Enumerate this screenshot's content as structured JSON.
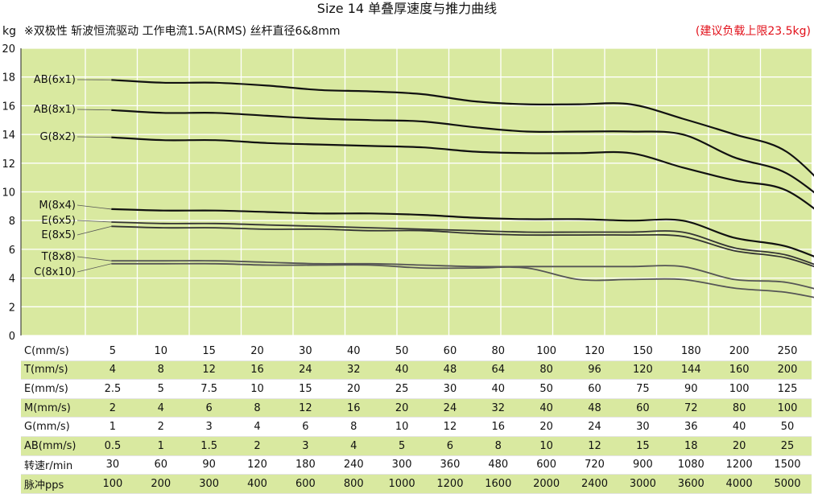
{
  "title": "Size 14 单叠厚速度与推力曲线",
  "unit": "kg",
  "subtitle": "※双极性 斩波恒流驱动 工作电流1.5A(RMS)  丝杆直径6&8mm",
  "load_note": "(建议负载上限23.5kg)",
  "colors": {
    "plot_bg": "#d9e9a0",
    "grid": "#ffffff",
    "accent": "#e2101a",
    "row_shade": "#d9e9a0"
  },
  "chart_data": {
    "type": "line",
    "ylabel": "kg",
    "ylim": [
      0,
      20
    ],
    "yticks": [
      0,
      2,
      4,
      6,
      8,
      10,
      12,
      14,
      16,
      18,
      20
    ],
    "grid": true,
    "x": [
      30,
      60,
      90,
      120,
      180,
      240,
      300,
      360,
      480,
      600,
      720,
      900,
      1080,
      1200,
      1500
    ],
    "series": [
      {
        "name": "AB(6x1)",
        "color": "#111111",
        "values": [
          17.8,
          17.6,
          17.6,
          17.4,
          17.1,
          17.0,
          16.8,
          16.3,
          16.1,
          16.1,
          16.1,
          15.1,
          14.0,
          12.8,
          9.4
        ]
      },
      {
        "name": "AB(8x1)",
        "color": "#111111",
        "values": [
          15.7,
          15.5,
          15.5,
          15.3,
          15.1,
          15.0,
          14.9,
          14.5,
          14.2,
          14.2,
          14.2,
          14.0,
          12.4,
          11.3,
          8.6
        ]
      },
      {
        "name": "G(8x2)",
        "color": "#111111",
        "values": [
          13.8,
          13.6,
          13.6,
          13.4,
          13.3,
          13.2,
          13.1,
          12.8,
          12.7,
          12.7,
          12.7,
          11.7,
          10.8,
          10.1,
          7.5
        ]
      },
      {
        "name": "M(8x4)",
        "color": "#111111",
        "values": [
          8.8,
          8.7,
          8.7,
          8.6,
          8.5,
          8.5,
          8.4,
          8.2,
          8.1,
          8.1,
          8.0,
          8.0,
          6.8,
          6.2,
          4.8
        ]
      },
      {
        "name": "E(6x5)",
        "color": "#333333",
        "values": [
          7.9,
          7.8,
          7.8,
          7.7,
          7.6,
          7.5,
          7.4,
          7.3,
          7.2,
          7.2,
          7.2,
          7.2,
          6.1,
          5.6,
          4.3
        ]
      },
      {
        "name": "E(8x5)",
        "color": "#333333",
        "values": [
          7.6,
          7.5,
          7.5,
          7.4,
          7.4,
          7.3,
          7.3,
          7.1,
          7.0,
          7.0,
          7.0,
          6.9,
          5.9,
          5.4,
          4.2
        ]
      },
      {
        "name": "T(8x8)",
        "color": "#555555",
        "values": [
          5.2,
          5.2,
          5.2,
          5.1,
          5.0,
          5.0,
          4.9,
          4.8,
          4.8,
          4.8,
          4.8,
          4.8,
          3.9,
          3.7,
          2.8
        ]
      },
      {
        "name": "C(8x10)",
        "color": "#555555",
        "values": [
          5.0,
          5.0,
          5.0,
          4.9,
          4.9,
          4.9,
          4.7,
          4.7,
          4.7,
          3.9,
          3.9,
          3.9,
          3.3,
          3.0,
          2.3
        ]
      }
    ]
  },
  "table": [
    {
      "label": "C(mm/s)",
      "values": [
        "5",
        "10",
        "15",
        "20",
        "30",
        "40",
        "50",
        "60",
        "80",
        "100",
        "120",
        "150",
        "180",
        "200",
        "250"
      ]
    },
    {
      "label": "T(mm/s)",
      "values": [
        "4",
        "8",
        "12",
        "16",
        "24",
        "32",
        "40",
        "48",
        "64",
        "80",
        "96",
        "120",
        "144",
        "160",
        "200"
      ]
    },
    {
      "label": "E(mm/s)",
      "values": [
        "2.5",
        "5",
        "7.5",
        "10",
        "15",
        "20",
        "25",
        "30",
        "40",
        "50",
        "60",
        "75",
        "90",
        "100",
        "125"
      ]
    },
    {
      "label": "M(mm/s)",
      "values": [
        "2",
        "4",
        "6",
        "8",
        "12",
        "16",
        "20",
        "24",
        "32",
        "40",
        "48",
        "60",
        "72",
        "80",
        "100"
      ]
    },
    {
      "label": "G(mm/s)",
      "values": [
        "1",
        "2",
        "3",
        "4",
        "6",
        "8",
        "10",
        "12",
        "16",
        "20",
        "24",
        "30",
        "36",
        "40",
        "50"
      ]
    },
    {
      "label": "AB(mm/s)",
      "values": [
        "0.5",
        "1",
        "1.5",
        "2",
        "3",
        "4",
        "5",
        "6",
        "8",
        "10",
        "12",
        "15",
        "18",
        "20",
        "25"
      ]
    },
    {
      "label": "转速r/min",
      "values": [
        "30",
        "60",
        "90",
        "120",
        "180",
        "240",
        "300",
        "360",
        "480",
        "600",
        "720",
        "900",
        "1080",
        "1200",
        "1500"
      ]
    },
    {
      "label": "脉冲pps",
      "values": [
        "100",
        "200",
        "300",
        "400",
        "600",
        "800",
        "1000",
        "1200",
        "1600",
        "2000",
        "2400",
        "3000",
        "3600",
        "4000",
        "5000"
      ]
    }
  ]
}
